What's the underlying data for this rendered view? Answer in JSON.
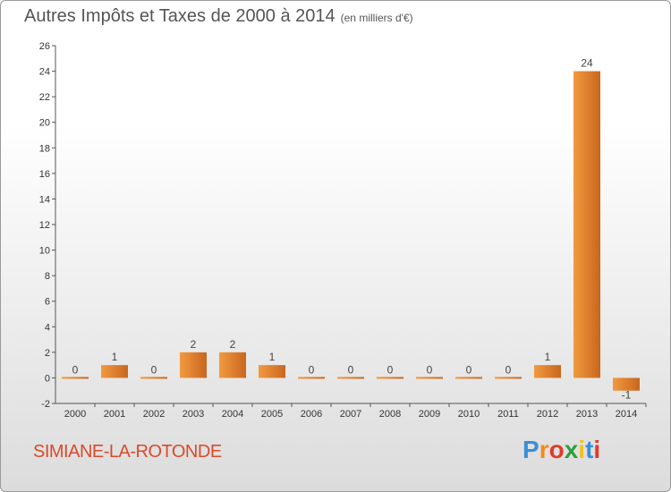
{
  "chart_data": {
    "type": "bar",
    "title": "Autres Impôts et Taxes de 2000 à 2014",
    "unit_note": "(en milliers d'€)",
    "categories": [
      "2000",
      "2001",
      "2002",
      "2003",
      "2004",
      "2005",
      "2006",
      "2007",
      "2008",
      "2009",
      "2010",
      "2011",
      "2012",
      "2013",
      "2014"
    ],
    "values": [
      0,
      1,
      0,
      2,
      2,
      1,
      0,
      0,
      0,
      0,
      0,
      0,
      1,
      24,
      -1
    ],
    "data_labels": [
      "0",
      "1",
      "0",
      "2",
      "2",
      "1",
      "0",
      "0",
      "0",
      "0",
      "0",
      "0",
      "1",
      "24",
      "-1"
    ],
    "ylim": [
      -2,
      26
    ],
    "yticks": [
      -2,
      0,
      2,
      4,
      6,
      8,
      10,
      12,
      14,
      16,
      18,
      20,
      22,
      24,
      26
    ],
    "grid": false,
    "bar_color": "#f29a3f",
    "bar_color_dark": "#c8661e"
  },
  "footer": {
    "commune": "SIMIANE-LA-ROTONDE",
    "logo_letters": [
      "P",
      "r",
      "o",
      "x",
      "i",
      "t",
      "i"
    ],
    "logo_colors": [
      "#3a8fd8",
      "#f28a1c",
      "#e23a2a",
      "#2f9e3f",
      "#f2c21c",
      "#3a8fd8",
      "#e23a2a"
    ]
  }
}
